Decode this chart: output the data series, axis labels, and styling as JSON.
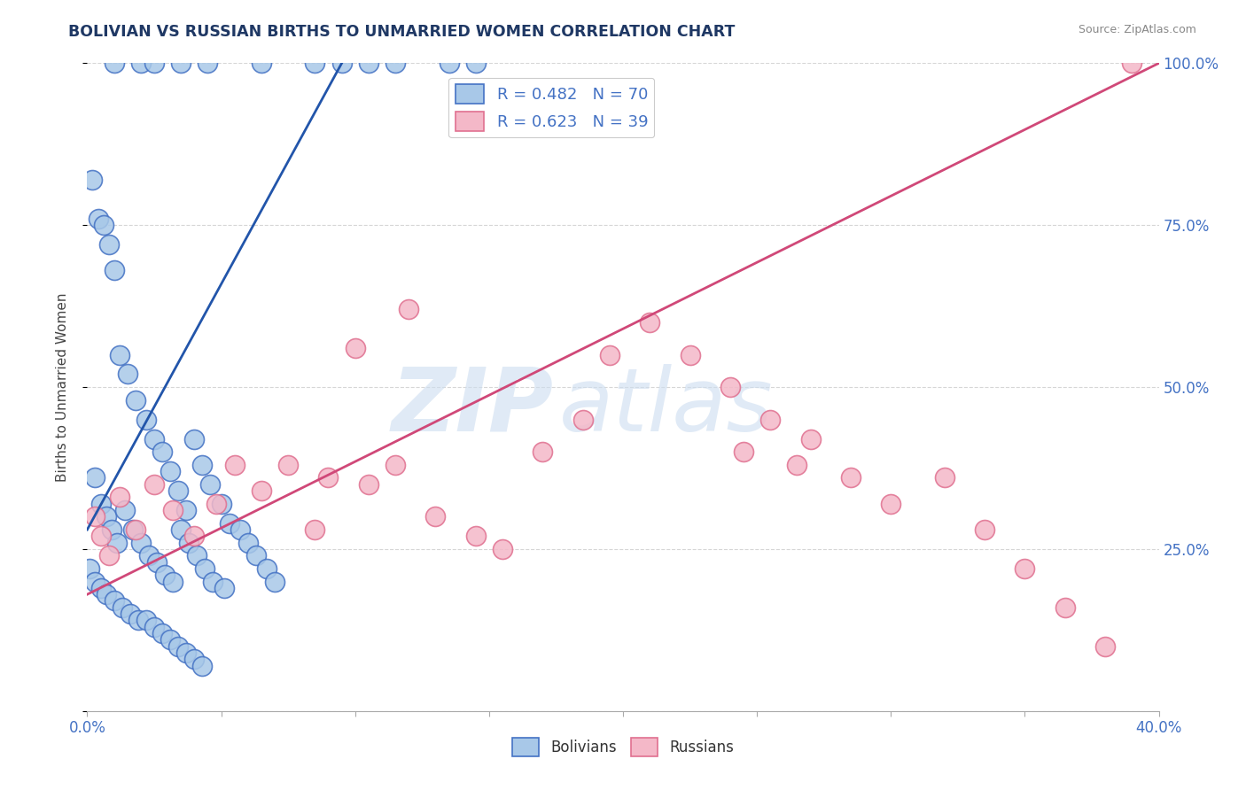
{
  "title": "BOLIVIAN VS RUSSIAN BIRTHS TO UNMARRIED WOMEN CORRELATION CHART",
  "source_text": "Source: ZipAtlas.com",
  "ylabel_label": "Births to Unmarried Women",
  "watermark_zip": "ZIP",
  "watermark_atlas": "atlas",
  "legend_blue_label": "R = 0.482   N = 70",
  "legend_pink_label": "R = 0.623   N = 39",
  "blue_color": "#a8c8e8",
  "pink_color": "#f4b8c8",
  "blue_edge_color": "#4472c4",
  "pink_edge_color": "#e07090",
  "blue_line_color": "#2255aa",
  "pink_line_color": "#d04878",
  "text_color": "#4472c4",
  "title_color": "#1f3864",
  "xlim": [
    0.0,
    40.0
  ],
  "ylim": [
    0.0,
    100.0
  ],
  "blue_scatter_x": [
    1.0,
    2.0,
    2.5,
    3.5,
    4.5,
    6.5,
    8.5,
    9.5,
    10.5,
    11.5,
    13.5,
    14.5,
    0.2,
    0.4,
    0.6,
    0.8,
    1.0,
    1.2,
    1.5,
    1.8,
    2.2,
    2.5,
    2.8,
    3.1,
    3.4,
    3.7,
    4.0,
    4.3,
    4.6,
    5.0,
    5.3,
    5.7,
    6.0,
    6.3,
    6.7,
    7.0,
    0.3,
    0.5,
    0.7,
    0.9,
    1.1,
    1.4,
    1.7,
    2.0,
    2.3,
    2.6,
    2.9,
    3.2,
    3.5,
    3.8,
    4.1,
    4.4,
    4.7,
    5.1,
    0.1,
    0.3,
    0.5,
    0.7,
    1.0,
    1.3,
    1.6,
    1.9,
    2.2,
    2.5,
    2.8,
    3.1,
    3.4,
    3.7,
    4.0,
    4.3
  ],
  "blue_scatter_y": [
    100.0,
    100.0,
    100.0,
    100.0,
    100.0,
    100.0,
    100.0,
    100.0,
    100.0,
    100.0,
    100.0,
    100.0,
    82.0,
    76.0,
    75.0,
    72.0,
    68.0,
    55.0,
    52.0,
    48.0,
    45.0,
    42.0,
    40.0,
    37.0,
    34.0,
    31.0,
    42.0,
    38.0,
    35.0,
    32.0,
    29.0,
    28.0,
    26.0,
    24.0,
    22.0,
    20.0,
    36.0,
    32.0,
    30.0,
    28.0,
    26.0,
    31.0,
    28.0,
    26.0,
    24.0,
    23.0,
    21.0,
    20.0,
    28.0,
    26.0,
    24.0,
    22.0,
    20.0,
    19.0,
    22.0,
    20.0,
    19.0,
    18.0,
    17.0,
    16.0,
    15.0,
    14.0,
    14.0,
    13.0,
    12.0,
    11.0,
    10.0,
    9.0,
    8.0,
    7.0
  ],
  "pink_scatter_x": [
    0.3,
    0.5,
    0.8,
    1.2,
    1.8,
    2.5,
    3.2,
    4.0,
    4.8,
    5.5,
    6.5,
    7.5,
    8.5,
    9.0,
    10.5,
    11.5,
    13.0,
    14.5,
    15.5,
    17.0,
    18.5,
    19.5,
    21.0,
    22.5,
    24.0,
    25.5,
    27.0,
    28.5,
    30.0,
    32.0,
    33.5,
    35.0,
    36.5,
    38.0,
    39.0,
    24.5,
    26.5,
    10.0,
    12.0
  ],
  "pink_scatter_y": [
    30.0,
    27.0,
    24.0,
    33.0,
    28.0,
    35.0,
    31.0,
    27.0,
    32.0,
    38.0,
    34.0,
    38.0,
    28.0,
    36.0,
    35.0,
    38.0,
    30.0,
    27.0,
    25.0,
    40.0,
    45.0,
    55.0,
    60.0,
    55.0,
    50.0,
    45.0,
    42.0,
    36.0,
    32.0,
    36.0,
    28.0,
    22.0,
    16.0,
    10.0,
    100.0,
    40.0,
    38.0,
    56.0,
    62.0
  ],
  "blue_line_x": [
    0.0,
    9.5
  ],
  "blue_line_y": [
    28.0,
    100.0
  ],
  "pink_line_x": [
    0.0,
    40.0
  ],
  "pink_line_y": [
    18.0,
    100.0
  ]
}
